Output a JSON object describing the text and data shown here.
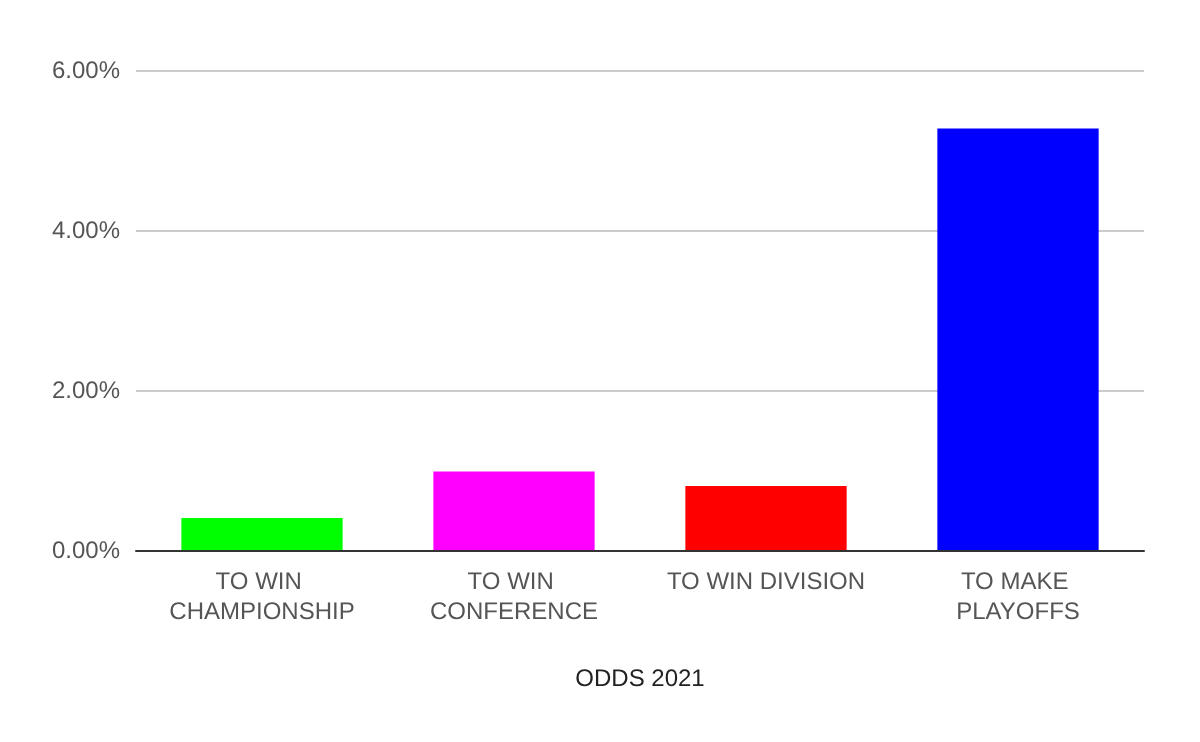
{
  "chart_data": {
    "type": "bar",
    "xlabel": "ODDS 2021",
    "categories": [
      "TO WIN CHAMPIONSHIP",
      "TO WIN CONFERENCE",
      "TO WIN DIVISION",
      "TO MAKE PLAYOFFS"
    ],
    "values": [
      0.4,
      0.98,
      0.8,
      5.27
    ],
    "colors": [
      "#00ff00",
      "#ff00ff",
      "#ff0000",
      "#0000ff"
    ],
    "ylim": [
      0,
      6
    ],
    "yticks": [
      {
        "value": 0,
        "label": "0.00%"
      },
      {
        "value": 2,
        "label": "2.00%"
      },
      {
        "value": 4,
        "label": "4.00%"
      },
      {
        "value": 6,
        "label": "6.00%"
      }
    ],
    "grid": "y"
  }
}
